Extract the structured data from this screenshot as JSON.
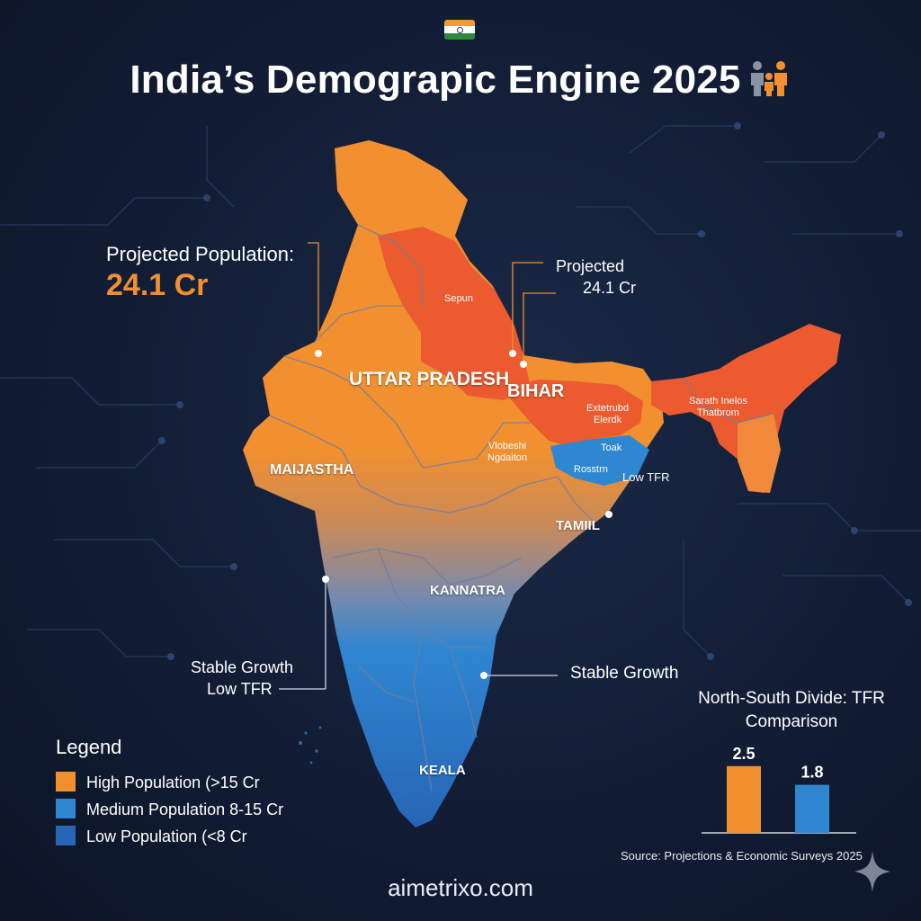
{
  "title": "India’s Demograpic Engine 2025",
  "colors": {
    "background": "#121d35",
    "high": "#f2902f",
    "hot": "#ec5a2f",
    "medium": "#2f86d1",
    "low": "#2765b6",
    "flag_saffron": "#f29b38",
    "flag_white": "#ffffff",
    "flag_green": "#2e8b3c"
  },
  "icons": {
    "flag": "india-flag-icon",
    "family": "family-icon",
    "sparkle": "sparkle-icon"
  },
  "callouts": {
    "left_top": {
      "label": "Projected Population:",
      "value": "24.1 Cr"
    },
    "right_top": {
      "line1": "Projected",
      "line2": "24.1 Cr"
    },
    "left_bottom": {
      "line1": "Stable Growth",
      "line2": "Low TFR"
    },
    "right_bottom": {
      "line1": "Stable Growth"
    }
  },
  "states": {
    "uttar_pradesh": "UTTAR PRADESH",
    "bihar": "BIHAR",
    "rajasthan": "MAIJASTHA",
    "tamil": "TAMIIL",
    "karnataka": "KANNATRA",
    "kerala": "KEALA"
  },
  "minor_labels": {
    "sepun": "Sepun",
    "extetrubd": [
      "Extetrubd",
      "Elerdk"
    ],
    "vlobeshi": [
      "Vlobeshi",
      "Ngdaiton"
    ],
    "toak": "Toak",
    "rosstrn": "Rosstrn",
    "low_tfr": "Low TFR",
    "sarath": [
      "Sarath Inelos",
      "Thatbrom"
    ]
  },
  "legend": {
    "title": "Legend",
    "items": [
      {
        "label": "High Population (>15 Cr",
        "color": "#f2902f"
      },
      {
        "label": "Medium Population 8-15 Cr",
        "color": "#2f86d1"
      },
      {
        "label": "Low Population (<8 Cr",
        "color": "#2765b6"
      }
    ]
  },
  "chart_data": {
    "type": "bar",
    "title": "North-South Divide: TFR Comparison",
    "categories": [
      "",
      ""
    ],
    "values": [
      2.5,
      1.8
    ],
    "colors": [
      "#f2902f",
      "#2f86d1"
    ],
    "ylim": [
      0,
      3.1
    ]
  },
  "source": "Source: Projections & Economic Surveys 2025",
  "website": "aimetrixo.com"
}
